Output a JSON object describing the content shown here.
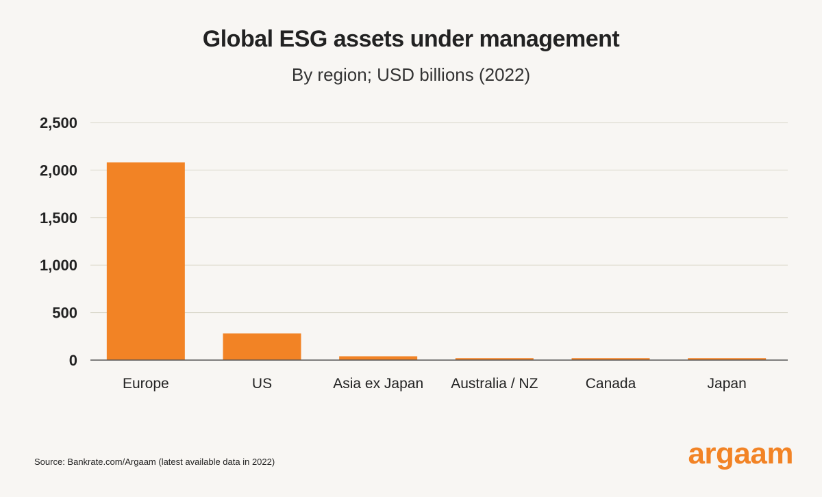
{
  "chart_data": {
    "type": "bar",
    "title": "Global ESG assets under management",
    "subtitle": "By region; USD billions (2022)",
    "categories": [
      "Europe",
      "US",
      "Asia ex Japan",
      "Australia / NZ",
      "Canada",
      "Japan"
    ],
    "values": [
      2080,
      280,
      40,
      20,
      20,
      20
    ],
    "yticks": [
      "0",
      "500",
      "1,000",
      "1,500",
      "2,000",
      "2,500"
    ],
    "ylim": [
      0,
      2500
    ],
    "xlabel": "",
    "ylabel": "",
    "grid": true,
    "bar_color": "#f28325"
  },
  "source": "Source: Bankrate.com/Argaam (latest available data in 2022)",
  "logo": "argaam",
  "colors": {
    "background": "#f8f6f3",
    "accent": "#f28325",
    "grid": "#d9d6c8"
  }
}
